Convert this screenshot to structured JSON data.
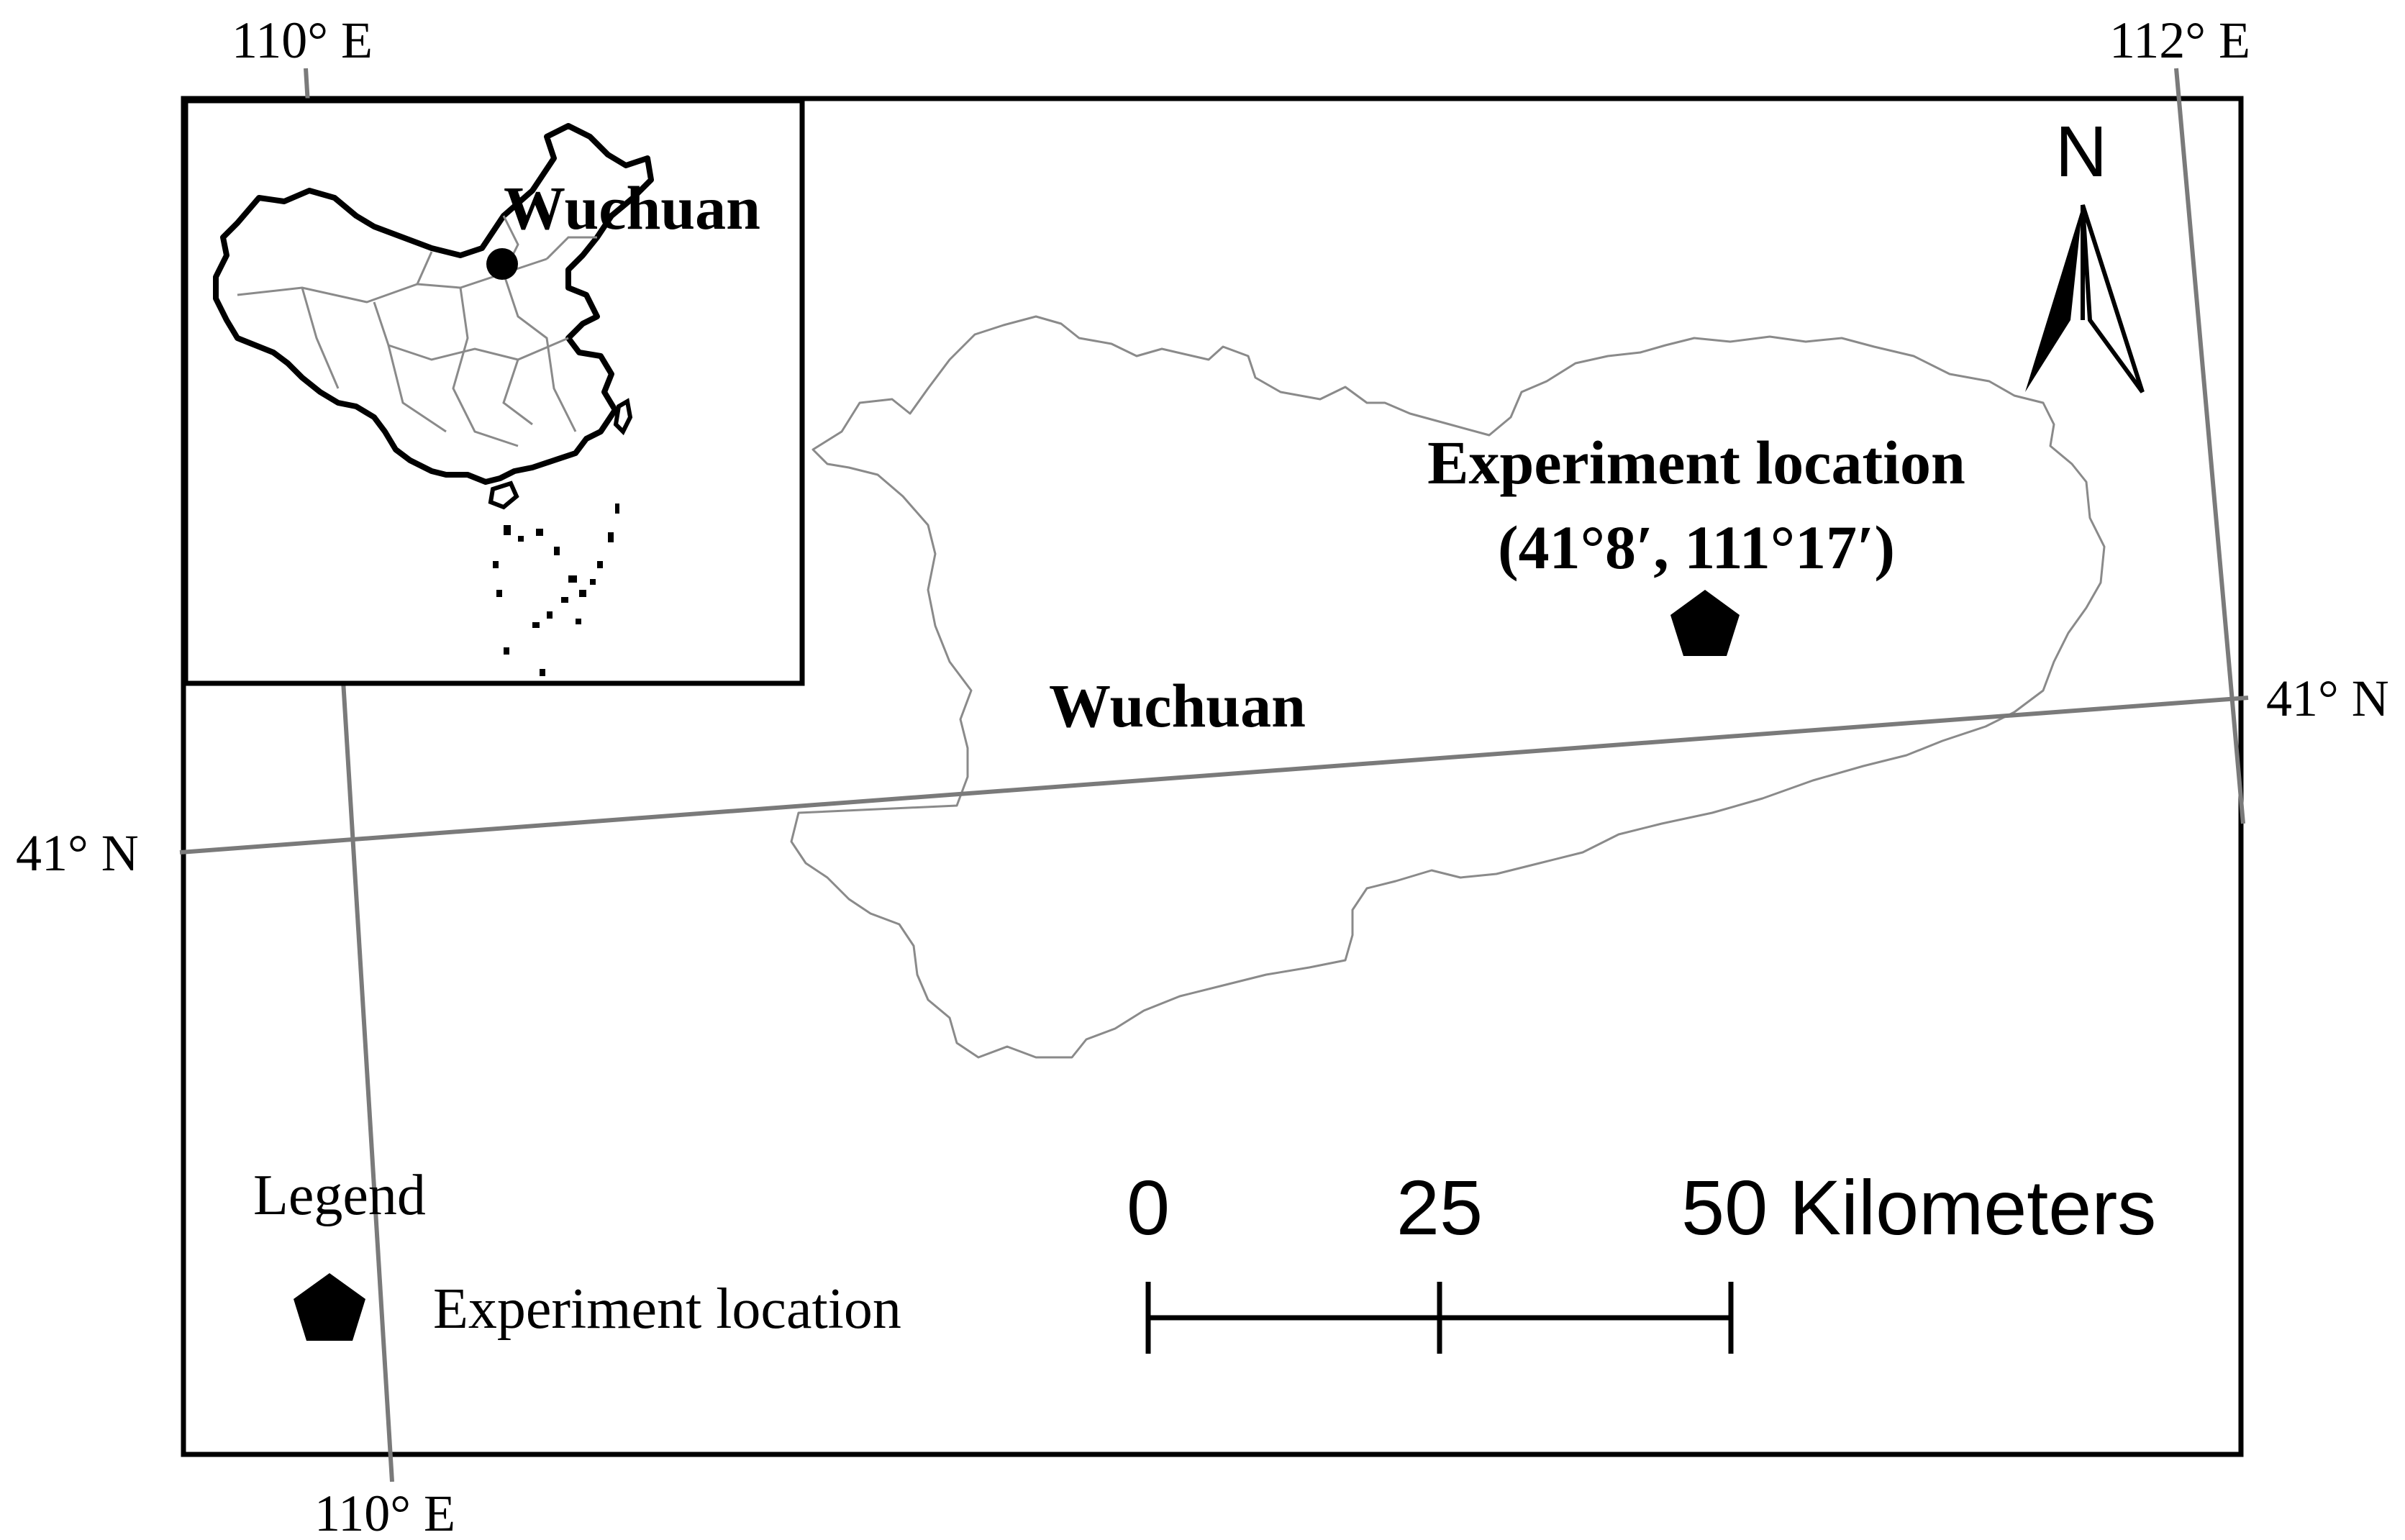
{
  "graticule": {
    "lon_110_top": "110° E",
    "lon_112_top": "112° E",
    "lon_110_bottom": "110° E",
    "lat_41_left": "41° N",
    "lat_41_right": "41° N"
  },
  "inset": {
    "label": "Wuchuan"
  },
  "region": {
    "label": "Wuchuan"
  },
  "experiment": {
    "title": "Experiment location",
    "coords": "(41°8′,  111°17′)"
  },
  "north_arrow": {
    "label": "N"
  },
  "legend": {
    "title": "Legend",
    "items": [
      {
        "symbol": "pentagon",
        "label": "Experiment location"
      }
    ]
  },
  "scale_bar": {
    "ticks": [
      "0",
      "25",
      "50 Kilometers"
    ]
  },
  "colors": {
    "frame": "#000000",
    "graticule": "#7a7a7a",
    "boundary": "#8a8a8a"
  }
}
